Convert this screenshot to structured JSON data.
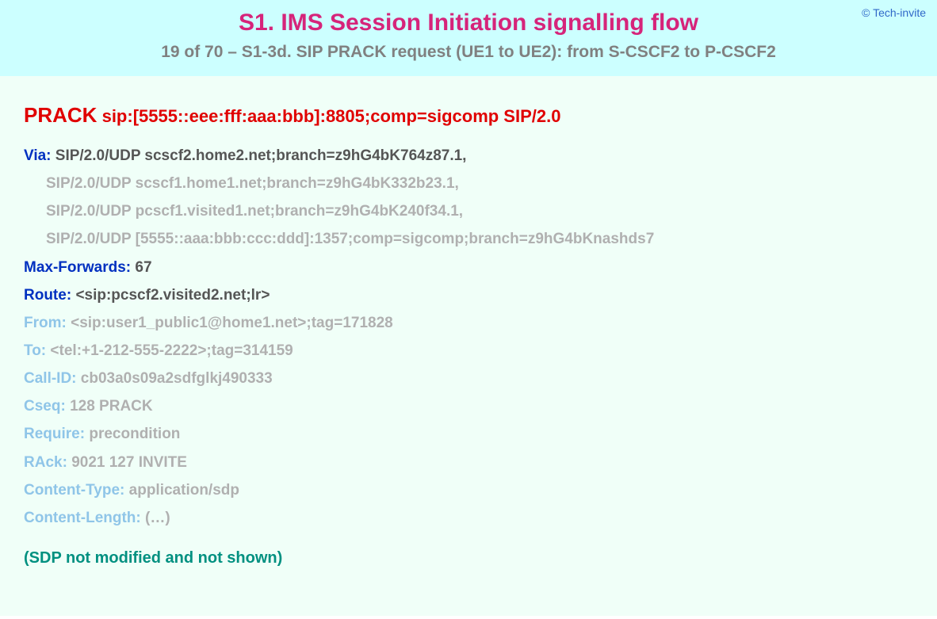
{
  "copyright": "© Tech-invite",
  "title": "S1. IMS Session Initiation signalling flow",
  "subtitle": "19 of 70 – S1-3d. SIP PRACK request (UE1 to UE2): from S-CSCF2 to P-CSCF2",
  "request": {
    "method": "PRACK",
    "uri": "sip:[5555::eee:fff:aaa:bbb]:8805;comp=sigcomp SIP/2.0"
  },
  "headers": [
    {
      "name": "Via:",
      "nameStyle": "blue",
      "valStyle": "dark",
      "value": "SIP/2.0/UDP scscf2.home2.net;branch=z9hG4bK764z87.1,",
      "indent": false
    },
    {
      "name": "",
      "nameStyle": "",
      "valStyle": "gray",
      "value": "SIP/2.0/UDP scscf1.home1.net;branch=z9hG4bK332b23.1,",
      "indent": true
    },
    {
      "name": "",
      "nameStyle": "",
      "valStyle": "gray",
      "value": "SIP/2.0/UDP pcscf1.visited1.net;branch=z9hG4bK240f34.1,",
      "indent": true
    },
    {
      "name": "",
      "nameStyle": "",
      "valStyle": "gray",
      "value": "SIP/2.0/UDP [5555::aaa:bbb:ccc:ddd]:1357;comp=sigcomp;branch=z9hG4bKnashds7",
      "indent": true
    },
    {
      "name": "Max-Forwards:",
      "nameStyle": "blue",
      "valStyle": "dark",
      "value": "67",
      "indent": false
    },
    {
      "name": "Route:",
      "nameStyle": "blue",
      "valStyle": "dark",
      "value": "<sip:pcscf2.visited2.net;lr>",
      "indent": false
    },
    {
      "name": "From:",
      "nameStyle": "light",
      "valStyle": "gray",
      "value": "<sip:user1_public1@home1.net>;tag=171828",
      "indent": false
    },
    {
      "name": "To:",
      "nameStyle": "light",
      "valStyle": "gray",
      "value": "<tel:+1-212-555-2222>;tag=314159",
      "indent": false
    },
    {
      "name": "Call-ID:",
      "nameStyle": "light",
      "valStyle": "gray",
      "value": "cb03a0s09a2sdfglkj490333",
      "indent": false
    },
    {
      "name": "Cseq:",
      "nameStyle": "light",
      "valStyle": "gray",
      "value": "128 PRACK",
      "indent": false
    },
    {
      "name": "Require:",
      "nameStyle": "light",
      "valStyle": "gray",
      "value": "precondition",
      "indent": false
    },
    {
      "name": "RAck:",
      "nameStyle": "light",
      "valStyle": "gray",
      "value": "9021 127 INVITE",
      "indent": false
    },
    {
      "name": "Content-Type:",
      "nameStyle": "light",
      "valStyle": "gray",
      "value": "application/sdp",
      "indent": false
    },
    {
      "name": "Content-Length:",
      "nameStyle": "light",
      "valStyle": "gray",
      "value": "(…)",
      "indent": false
    }
  ],
  "footer_note": "(SDP not modified and not shown)",
  "colors": {
    "header_bg": "#ccffff",
    "content_bg": "#f0fff8",
    "title": "#d6247a",
    "subtitle": "#808080",
    "copyright": "#3068c8",
    "red": "#e00000",
    "blue_name": "#0030c0",
    "light_name": "#8fc5e8",
    "val_dark": "#555555",
    "val_gray": "#b0b0b0",
    "footer": "#009080"
  },
  "typography": {
    "title_size": 30,
    "subtitle_size": 21,
    "method_size": 26,
    "uri_size": 22,
    "row_size": 19,
    "footer_size": 20,
    "font_family": "Arial"
  }
}
